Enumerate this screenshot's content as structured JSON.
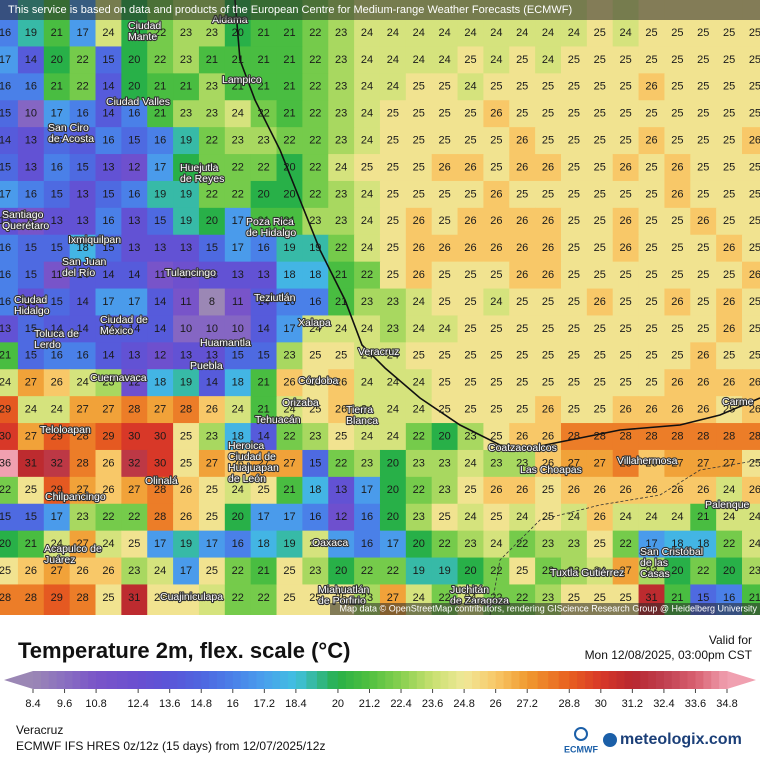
{
  "header": {
    "notice": "This service is based on data and products of the European Centre for Medium-range Weather Forecasts (ECMWF)"
  },
  "map": {
    "attribution": "Map data © OpenStreetMap contributors, rendering GIScience Research Group @ Heidelberg University",
    "grid": [
      [
        16,
        19,
        21,
        17,
        24,
        20,
        22,
        23,
        23,
        20,
        21,
        21,
        22,
        23,
        24,
        24,
        24,
        24,
        24,
        24,
        24,
        24,
        24,
        25,
        24,
        25,
        25,
        25,
        25,
        25
      ],
      [
        17,
        14,
        20,
        22,
        15,
        20,
        22,
        23,
        21,
        21,
        21,
        21,
        22,
        23,
        24,
        24,
        24,
        24,
        25,
        24,
        25,
        24,
        25,
        25,
        25,
        25,
        25,
        25,
        25,
        25
      ],
      [
        16,
        16,
        21,
        22,
        14,
        20,
        21,
        21,
        23,
        21,
        21,
        21,
        22,
        23,
        24,
        24,
        25,
        25,
        24,
        25,
        25,
        25,
        25,
        25,
        25,
        26,
        25,
        25,
        25,
        25
      ],
      [
        15,
        10,
        17,
        16,
        14,
        16,
        21,
        23,
        23,
        24,
        22,
        21,
        22,
        23,
        24,
        25,
        25,
        25,
        25,
        26,
        25,
        25,
        25,
        25,
        25,
        25,
        25,
        25,
        25,
        25
      ],
      [
        14,
        13,
        15,
        14,
        16,
        15,
        16,
        19,
        22,
        23,
        23,
        22,
        22,
        23,
        24,
        25,
        25,
        25,
        25,
        25,
        26,
        25,
        25,
        25,
        25,
        26,
        25,
        25,
        25,
        26
      ],
      [
        15,
        13,
        16,
        15,
        13,
        12,
        17,
        20,
        22,
        22,
        22,
        20,
        22,
        24,
        25,
        25,
        25,
        26,
        26,
        25,
        26,
        26,
        25,
        25,
        26,
        25,
        26,
        25,
        25,
        25
      ],
      [
        17,
        16,
        15,
        13,
        15,
        16,
        19,
        19,
        22,
        22,
        20,
        20,
        22,
        23,
        24,
        25,
        25,
        25,
        25,
        26,
        25,
        25,
        25,
        25,
        25,
        25,
        26,
        25,
        25,
        25
      ],
      [
        13,
        11,
        13,
        13,
        16,
        13,
        15,
        19,
        20,
        17,
        21,
        21,
        23,
        23,
        24,
        25,
        26,
        25,
        26,
        26,
        26,
        26,
        25,
        25,
        26,
        25,
        25,
        26,
        25,
        25
      ],
      [
        16,
        15,
        15,
        18,
        15,
        13,
        13,
        13,
        15,
        17,
        16,
        19,
        19,
        22,
        24,
        25,
        26,
        26,
        26,
        26,
        26,
        26,
        25,
        25,
        26,
        25,
        25,
        25,
        26,
        25
      ],
      [
        16,
        15,
        11,
        14,
        14,
        14,
        11,
        12,
        13,
        13,
        13,
        18,
        18,
        21,
        22,
        25,
        26,
        25,
        25,
        25,
        26,
        26,
        25,
        25,
        25,
        25,
        25,
        25,
        25,
        26
      ],
      [
        16,
        13,
        15,
        14,
        17,
        17,
        14,
        11,
        8,
        11,
        14,
        16,
        16,
        21,
        23,
        23,
        24,
        25,
        25,
        24,
        25,
        25,
        25,
        26,
        25,
        25,
        26,
        25,
        26,
        25
      ],
      [
        13,
        15,
        14,
        14,
        14,
        14,
        14,
        10,
        10,
        10,
        14,
        17,
        24,
        24,
        24,
        23,
        24,
        24,
        25,
        25,
        25,
        25,
        25,
        25,
        25,
        25,
        25,
        25,
        26,
        25
      ],
      [
        21,
        15,
        16,
        16,
        14,
        13,
        12,
        13,
        13,
        15,
        15,
        23,
        25,
        25,
        24,
        24,
        25,
        25,
        25,
        25,
        25,
        25,
        25,
        25,
        25,
        25,
        25,
        26,
        25,
        25
      ],
      [
        24,
        27,
        26,
        24,
        23,
        12,
        18,
        19,
        14,
        18,
        21,
        26,
        25,
        26,
        24,
        24,
        24,
        25,
        25,
        25,
        25,
        25,
        25,
        25,
        25,
        25,
        26,
        26,
        26,
        26
      ],
      [
        29,
        24,
        24,
        27,
        27,
        28,
        27,
        28,
        26,
        24,
        21,
        24,
        25,
        26,
        24,
        24,
        24,
        25,
        25,
        25,
        25,
        26,
        25,
        25,
        26,
        26,
        26,
        26,
        25,
        26
      ],
      [
        30,
        27,
        29,
        28,
        29,
        30,
        30,
        25,
        23,
        18,
        14,
        22,
        23,
        25,
        24,
        24,
        22,
        20,
        23,
        25,
        26,
        26,
        28,
        28,
        28,
        28,
        28,
        28,
        28,
        28
      ],
      [
        36,
        31,
        32,
        28,
        26,
        32,
        30,
        25,
        27,
        26,
        27,
        27,
        15,
        22,
        23,
        20,
        23,
        23,
        24,
        23,
        23,
        26,
        27,
        27,
        28,
        26,
        27,
        27,
        27,
        25
      ],
      [
        22,
        25,
        29,
        27,
        26,
        27,
        28,
        26,
        25,
        24,
        25,
        21,
        18,
        13,
        17,
        20,
        22,
        23,
        25,
        26,
        26,
        25,
        26,
        26,
        26,
        26,
        26,
        26,
        24,
        26
      ],
      [
        15,
        15,
        17,
        23,
        22,
        22,
        28,
        26,
        25,
        20,
        17,
        17,
        16,
        12,
        16,
        20,
        23,
        25,
        24,
        25,
        24,
        25,
        24,
        26,
        24,
        24,
        24,
        21,
        24,
        24
      ],
      [
        20,
        21,
        24,
        27,
        24,
        25,
        17,
        19,
        17,
        16,
        18,
        19,
        24,
        17,
        16,
        17,
        20,
        22,
        23,
        24,
        22,
        23,
        23,
        25,
        22,
        17,
        18,
        18,
        22,
        24
      ],
      [
        25,
        26,
        27,
        26,
        26,
        23,
        24,
        17,
        25,
        22,
        21,
        25,
        23,
        20,
        22,
        22,
        19,
        19,
        20,
        22,
        25,
        22,
        23,
        24,
        27,
        23,
        20,
        22,
        20,
        23
      ],
      [
        28,
        28,
        29,
        28,
        25,
        31,
        25,
        25,
        24,
        22,
        22,
        25,
        25,
        25,
        23,
        27,
        24,
        22,
        24,
        22,
        22,
        23,
        25,
        25,
        25,
        31,
        21,
        15,
        16,
        21
      ]
    ],
    "places": [
      {
        "lines": [
          "Aldama"
        ]
      },
      {
        "lines": [
          "Ciudad",
          "Mante"
        ]
      },
      {
        "lines": [
          "Lampico"
        ]
      },
      {
        "lines": [
          "Ciudad Valles"
        ]
      },
      {
        "lines": [
          "San Ciro",
          "de Acosta"
        ]
      },
      {
        "lines": [
          "Huejutla",
          "de Reyes"
        ]
      },
      {
        "lines": [
          "Santiago",
          "Querétaro"
        ]
      },
      {
        "lines": [
          "Ixmiquilpan"
        ]
      },
      {
        "lines": [
          "Poza Rica",
          "de Hidalgo"
        ]
      },
      {
        "lines": [
          "San Juan",
          "del Río"
        ]
      },
      {
        "lines": [
          "Tulancingo"
        ]
      },
      {
        "lines": [
          "Teziutlán"
        ]
      },
      {
        "lines": [
          "Ciudad",
          "Hidalgo"
        ]
      },
      {
        "lines": [
          "Xalapa"
        ]
      },
      {
        "lines": [
          "Ciudad de",
          "México"
        ]
      },
      {
        "lines": [
          "Toluca de",
          "Lerdo"
        ]
      },
      {
        "lines": [
          "Huamantla"
        ]
      },
      {
        "lines": [
          "Puebla"
        ]
      },
      {
        "lines": [
          "Veracruz"
        ]
      },
      {
        "lines": [
          "Cuernavaca"
        ]
      },
      {
        "lines": [
          "Córdoba"
        ]
      },
      {
        "lines": [
          "Orizaba"
        ]
      },
      {
        "lines": [
          "Tierra",
          "Blanca"
        ]
      },
      {
        "lines": [
          "Tehuacán"
        ]
      },
      {
        "lines": [
          "Teloloapan"
        ]
      },
      {
        "lines": [
          "Heroica",
          "Ciudad de",
          "Huajuapan",
          "de León"
        ]
      },
      {
        "lines": [
          "Coatzacoalcos"
        ]
      },
      {
        "lines": [
          "Las Choapas"
        ]
      },
      {
        "lines": [
          "Villahermosa"
        ]
      },
      {
        "lines": [
          "Olinalá"
        ]
      },
      {
        "lines": [
          "Chilpancingo"
        ]
      },
      {
        "lines": [
          "Oaxaca"
        ]
      },
      {
        "lines": [
          "Acapulco de",
          "Juárez"
        ]
      },
      {
        "lines": [
          "Tuxtla Gutiérrez"
        ]
      },
      {
        "lines": [
          "San Cristóbal",
          "de las",
          "Casas"
        ]
      },
      {
        "lines": [
          "Juchitán",
          "de Zaragoza"
        ]
      },
      {
        "lines": [
          "Cuajiniculapa"
        ]
      },
      {
        "lines": [
          "Miahuatlán",
          "de Porfirio"
        ]
      },
      {
        "lines": [
          "Palenque"
        ]
      },
      {
        "lines": [
          "Carme"
        ]
      }
    ]
  },
  "legend": {
    "title": "Temperature 2m, flex. scale (°C)",
    "valid_label": "Valid for",
    "valid_time": "Mon 12/08/2025, 03:00pm CST",
    "ticks": [
      8.4,
      9.6,
      10.8,
      12.4,
      13.6,
      14.8,
      16,
      17.2,
      18.4,
      20,
      21.2,
      22.4,
      23.6,
      24.8,
      26,
      27.2,
      28.8,
      30,
      31.2,
      32.4,
      33.6,
      34.8
    ],
    "colors": [
      "#9b87b5",
      "#8a6fc0",
      "#7a55c8",
      "#6a4ed0",
      "#5a55d8",
      "#4f66e0",
      "#4a80e8",
      "#4aa0ec",
      "#40c0e0",
      "#28b048",
      "#50c040",
      "#88d050",
      "#c8e070",
      "#f0e898",
      "#f8c868",
      "#f09a30",
      "#e86020",
      "#d83828",
      "#b82830",
      "#c04050",
      "#d86070",
      "#f0a0b0"
    ]
  },
  "footer": {
    "location": "Veracruz",
    "model": "ECMWF IFS HRES 0z/12z (15 days) from 12/07/2025/12z",
    "ecmwf": "ECMWF",
    "brand": "meteologix.com"
  }
}
